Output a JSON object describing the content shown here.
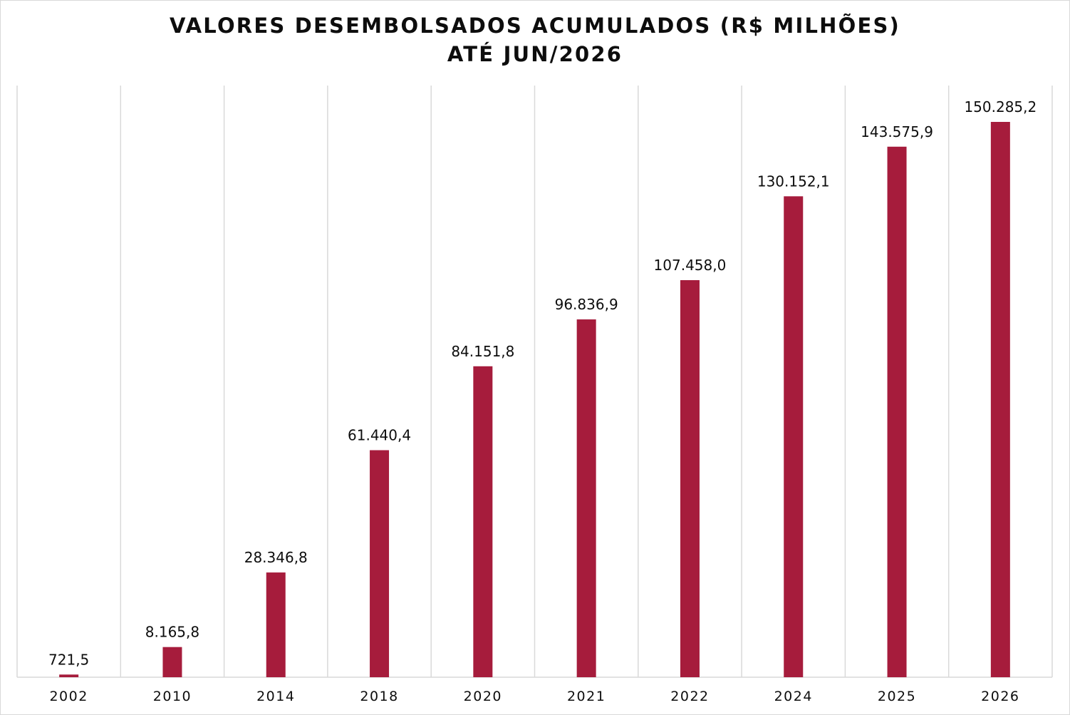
{
  "chart_data": {
    "type": "bar",
    "title": "VALORES DESEMBOLSADOS ACUMULADOS (R$ MILHÕES)",
    "subtitle": "ATÉ JUN/2026",
    "categories": [
      "2002",
      "2010",
      "2014",
      "2018",
      "2020",
      "2021",
      "2022",
      "2024",
      "2025",
      "2026"
    ],
    "values": [
      721.5,
      8165.8,
      28346.8,
      61440.4,
      84151.8,
      96836.9,
      107458.0,
      130152.1,
      143575.9,
      150285.2
    ],
    "data_labels": [
      "721,5",
      "8.165,8",
      "28.346,8",
      "61.440,4",
      "84.151,8",
      "96.836,9",
      "107.458,0",
      "130.152,1",
      "143.575,9",
      "150.285,2"
    ],
    "xlabel": "",
    "ylabel": "",
    "ylim": [
      0,
      160000
    ],
    "grid": "vertical category separators",
    "legend": "none",
    "bar_color": "#a61c3c"
  }
}
